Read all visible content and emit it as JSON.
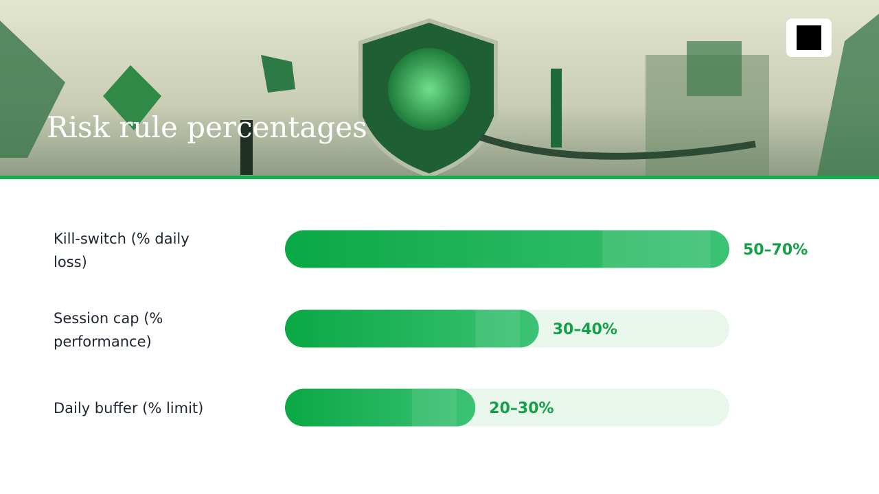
{
  "title": "Risk rule percentages",
  "chart_data": {
    "type": "range-bar",
    "categories": [
      "Kill-switch (% daily loss)",
      "Session cap (% performance)",
      "Daily buffer (% limit)"
    ],
    "low": [
      50,
      30,
      20
    ],
    "high": [
      70,
      40,
      30
    ],
    "value_labels": [
      "50–70%",
      "30–40%",
      "20–30%"
    ],
    "color": "#10b44c",
    "xlim": [
      0,
      70
    ]
  }
}
